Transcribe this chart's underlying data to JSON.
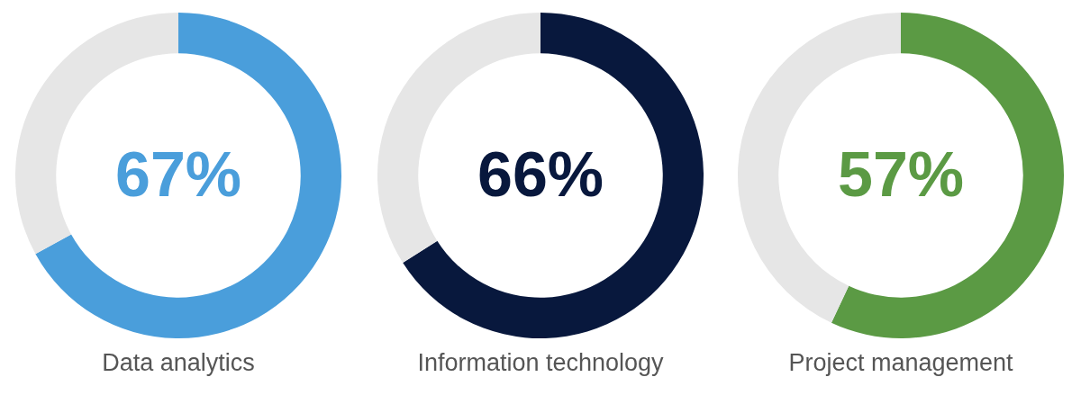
{
  "chart_data": [
    {
      "type": "donut",
      "title": "Data analytics",
      "categories": [
        null,
        null
      ],
      "values": [
        67,
        33
      ],
      "colors": [
        "#4a9edb",
        "#e6e6e6"
      ],
      "value_labels": [
        "67%",
        null
      ],
      "legend": false
    },
    {
      "type": "donut",
      "title": "Information technology",
      "categories": [
        null,
        null
      ],
      "values": [
        66,
        34
      ],
      "colors": [
        "#08183d",
        "#e6e6e6"
      ],
      "value_labels": [
        "66%",
        null
      ],
      "legend": false
    },
    {
      "type": "donut",
      "title": "Project management",
      "categories": [
        null,
        null
      ],
      "values": [
        57,
        43
      ],
      "colors": [
        "#5b9a44",
        "#e6e6e6"
      ],
      "value_labels": [
        "57%",
        null
      ],
      "legend": false
    }
  ]
}
